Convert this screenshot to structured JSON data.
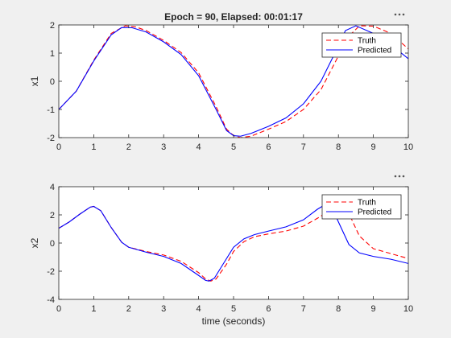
{
  "colors": {
    "truth": "#ff0000",
    "predicted": "#0000ff",
    "figure_bg": "#f0f0f0",
    "axes_bg": "#ffffff",
    "axis": "#262626"
  },
  "toolbar": {
    "menu_icon": "ellipsis-icon"
  },
  "chart_data": [
    {
      "type": "line",
      "title": "Epoch = 90, Elapsed: 00:01:17",
      "xlabel": "",
      "ylabel": "x1",
      "xlim": [
        0,
        10
      ],
      "ylim": [
        -2,
        2
      ],
      "xticks": [
        0,
        1,
        2,
        3,
        4,
        5,
        6,
        7,
        8,
        9,
        10
      ],
      "yticks": [
        -2,
        -1,
        0,
        1,
        2
      ],
      "grid": false,
      "legend": "top-right",
      "series": [
        {
          "name": "Truth",
          "style": "dashed",
          "color": "#ff0000",
          "x": [
            0,
            0.5,
            1.0,
            1.5,
            1.9,
            2.2,
            2.5,
            3.0,
            3.5,
            4.0,
            4.5,
            4.8,
            5.0,
            5.2,
            5.5,
            6.0,
            6.5,
            7.0,
            7.5,
            8.0,
            8.3,
            8.6,
            9.0,
            9.5,
            10.0
          ],
          "y": [
            -1.0,
            -0.35,
            0.75,
            1.7,
            1.97,
            1.93,
            1.8,
            1.45,
            1.02,
            0.3,
            -0.9,
            -1.7,
            -1.93,
            -2.0,
            -1.95,
            -1.7,
            -1.43,
            -1.0,
            -0.3,
            0.9,
            1.6,
            1.97,
            1.96,
            1.7,
            1.15
          ]
        },
        {
          "name": "Predicted",
          "style": "solid",
          "color": "#0000ff",
          "x": [
            0,
            0.5,
            1.0,
            1.5,
            1.8,
            2.1,
            2.5,
            3.0,
            3.5,
            4.0,
            4.5,
            4.8,
            5.0,
            5.2,
            5.5,
            6.0,
            6.5,
            7.0,
            7.5,
            8.0,
            8.2,
            8.5,
            9.0,
            9.5,
            10.0
          ],
          "y": [
            -1.0,
            -0.35,
            0.72,
            1.65,
            1.91,
            1.9,
            1.75,
            1.4,
            0.95,
            0.2,
            -1.0,
            -1.75,
            -1.93,
            -1.95,
            -1.85,
            -1.6,
            -1.3,
            -0.8,
            0.0,
            1.25,
            1.8,
            1.97,
            1.7,
            1.3,
            0.8
          ]
        }
      ]
    },
    {
      "type": "line",
      "title": "",
      "xlabel": "time (seconds)",
      "ylabel": "x2",
      "xlim": [
        0,
        10
      ],
      "ylim": [
        -4,
        4
      ],
      "xticks": [
        0,
        1,
        2,
        3,
        4,
        5,
        6,
        7,
        8,
        9,
        10
      ],
      "yticks": [
        -4,
        -2,
        0,
        2,
        4
      ],
      "grid": false,
      "legend": "top-right",
      "series": [
        {
          "name": "Truth",
          "style": "dashed",
          "color": "#ff0000",
          "x": [
            0,
            0.3,
            0.6,
            0.9,
            1.0,
            1.2,
            1.5,
            1.8,
            2.0,
            2.5,
            3.0,
            3.5,
            4.0,
            4.2,
            4.35,
            4.5,
            4.8,
            5.0,
            5.3,
            5.6,
            6.0,
            6.5,
            7.0,
            7.5,
            7.8,
            8.0,
            8.3,
            8.6,
            9.0,
            9.5,
            10.0
          ],
          "y": [
            1.05,
            1.5,
            2.05,
            2.55,
            2.6,
            2.3,
            1.1,
            0.05,
            -0.3,
            -0.6,
            -0.85,
            -1.3,
            -2.1,
            -2.55,
            -2.7,
            -2.55,
            -1.5,
            -0.6,
            0.1,
            0.45,
            0.65,
            0.85,
            1.2,
            1.9,
            2.55,
            2.75,
            2.1,
            0.5,
            -0.4,
            -0.75,
            -1.1
          ]
        },
        {
          "name": "Predicted",
          "style": "solid",
          "color": "#0000ff",
          "x": [
            0,
            0.3,
            0.6,
            0.9,
            1.0,
            1.2,
            1.5,
            1.8,
            2.0,
            2.5,
            3.0,
            3.5,
            4.0,
            4.2,
            4.3,
            4.45,
            4.7,
            5.0,
            5.3,
            5.6,
            6.0,
            6.5,
            7.0,
            7.4,
            7.6,
            7.8,
            8.0,
            8.3,
            8.6,
            9.0,
            9.5,
            10.0
          ],
          "y": [
            1.05,
            1.5,
            2.05,
            2.55,
            2.6,
            2.3,
            1.1,
            0.05,
            -0.3,
            -0.65,
            -0.95,
            -1.45,
            -2.3,
            -2.65,
            -2.7,
            -2.5,
            -1.5,
            -0.3,
            0.3,
            0.6,
            0.85,
            1.15,
            1.65,
            2.4,
            2.7,
            2.6,
            1.5,
            -0.1,
            -0.7,
            -0.95,
            -1.15,
            -1.45
          ]
        }
      ]
    }
  ]
}
